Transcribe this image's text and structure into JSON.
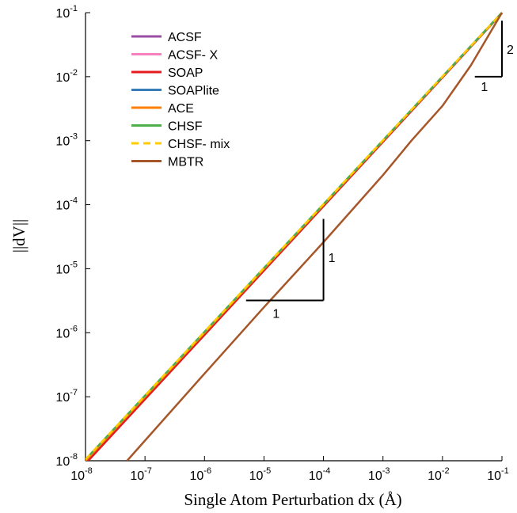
{
  "chart_data": {
    "type": "line",
    "xlabel": "Single Atom Perturbation dx (Å)",
    "ylabel": "||dV||",
    "x_scale": "log",
    "y_scale": "log",
    "xlim": [
      1e-08,
      0.1
    ],
    "ylim": [
      1e-08,
      0.1
    ],
    "x_ticks": [
      {
        "base": "10",
        "exp": "-8"
      },
      {
        "base": "10",
        "exp": "-7"
      },
      {
        "base": "10",
        "exp": "-6"
      },
      {
        "base": "10",
        "exp": "-5"
      },
      {
        "base": "10",
        "exp": "-4"
      },
      {
        "base": "10",
        "exp": "-3"
      },
      {
        "base": "10",
        "exp": "-2"
      },
      {
        "base": "10",
        "exp": "-1"
      }
    ],
    "y_ticks": [
      {
        "base": "10",
        "exp": "-8"
      },
      {
        "base": "10",
        "exp": "-7"
      },
      {
        "base": "10",
        "exp": "-6"
      },
      {
        "base": "10",
        "exp": "-5"
      },
      {
        "base": "10",
        "exp": "-4"
      },
      {
        "base": "10",
        "exp": "-3"
      },
      {
        "base": "10",
        "exp": "-2"
      },
      {
        "base": "10",
        "exp": "-1"
      }
    ],
    "legend_position": "top-left",
    "grid": false,
    "series": [
      {
        "name": "ACSF",
        "color": "#984ea3",
        "dashed": false,
        "points": [
          [
            1e-08,
            1e-08
          ],
          [
            0.1,
            0.1
          ]
        ]
      },
      {
        "name": "ACSF- X",
        "color": "#f781bf",
        "dashed": false,
        "points": [
          [
            1e-08,
            1e-08
          ],
          [
            0.1,
            0.1
          ]
        ]
      },
      {
        "name": "SOAP",
        "color": "#e41a1c",
        "dashed": false,
        "points": [
          [
            1e-08,
            9e-09
          ],
          [
            0.1,
            0.098
          ]
        ]
      },
      {
        "name": "SOAPlite",
        "color": "#377eb8",
        "dashed": false,
        "points": [
          [
            1e-08,
            1e-08
          ],
          [
            0.1,
            0.1
          ]
        ]
      },
      {
        "name": "ACE",
        "color": "#ff7f00",
        "dashed": false,
        "points": [
          [
            1e-08,
            1e-08
          ],
          [
            0.1,
            0.1
          ]
        ]
      },
      {
        "name": "CHSF",
        "color": "#4daf4a",
        "dashed": false,
        "points": [
          [
            1e-08,
            1.05e-08
          ],
          [
            0.1,
            0.1
          ]
        ]
      },
      {
        "name": "CHSF- mix",
        "color": "#ffcc00",
        "dashed": true,
        "points": [
          [
            1e-08,
            1.05e-08
          ],
          [
            0.1,
            0.1
          ]
        ]
      },
      {
        "name": "MBTR",
        "color": "#a65628",
        "dashed": false,
        "points": [
          [
            5e-08,
            1e-08
          ],
          [
            1e-06,
            2.3e-07
          ],
          [
            1e-05,
            2.5e-06
          ],
          [
            0.0001,
            2.6e-05
          ],
          [
            0.001,
            0.00029
          ],
          [
            0.003,
            0.001
          ],
          [
            0.01,
            0.0035
          ],
          [
            0.03,
            0.015
          ],
          [
            0.1,
            0.1
          ]
        ]
      }
    ],
    "annotations": [
      {
        "label": "1",
        "meaning": "slope-run",
        "target": "slope1-horizontal"
      },
      {
        "label": "1",
        "meaning": "slope-rise",
        "target": "slope1-vertical"
      },
      {
        "label": "2",
        "meaning": "slope-rise",
        "target": "slope2-vertical"
      },
      {
        "label": "1",
        "meaning": "slope-run",
        "target": "slope2-horizontal"
      }
    ]
  }
}
